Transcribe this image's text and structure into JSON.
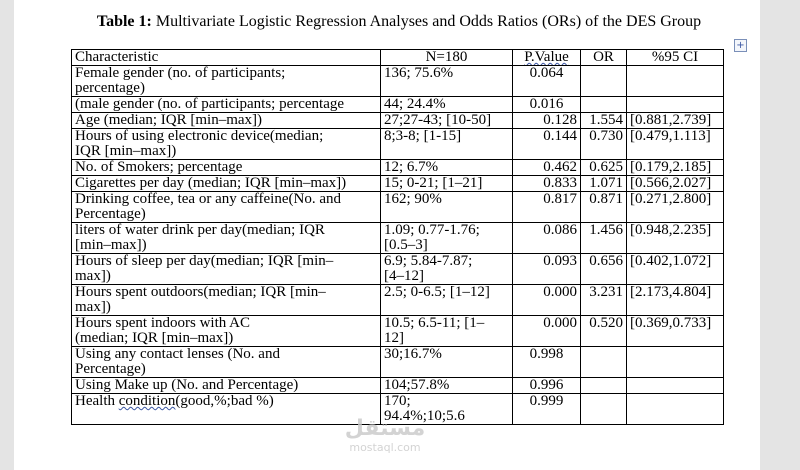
{
  "caption": {
    "label": "Table 1:",
    "text": " Multivariate Logistic Regression Analyses and Odds Ratios (ORs) of the DES Group"
  },
  "table": {
    "headers": [
      "Characteristic",
      "N=180",
      "P.Value",
      "OR",
      "%95 CI"
    ],
    "rows": [
      {
        "characteristic": [
          "Female gender (no. of participants;",
          "percentage)"
        ],
        "n": [
          "136; 75.6%"
        ],
        "p": "0.064",
        "or": "",
        "ci": ""
      },
      {
        "characteristic": [
          "(male gender (no. of participants; percentage"
        ],
        "n": [
          "44; 24.4%"
        ],
        "p": "0.016",
        "or": "",
        "ci": ""
      },
      {
        "characteristic": [
          "Age (median; IQR [min–max])"
        ],
        "n": [
          "27;27-43; [10-50]"
        ],
        "p": "0.128",
        "or": "1.554",
        "ci": "[0.881,2.739]"
      },
      {
        "characteristic": [
          " Hours of using electronic device(median;",
          "IQR [min–max])"
        ],
        "n": [
          "8;3-8; [1-15]"
        ],
        "p": "0.144",
        "or": "0.730",
        "ci": "[0.479,1.113]"
      },
      {
        "characteristic": [
          "No. of Smokers; percentage"
        ],
        "n": [
          "12; 6.7%"
        ],
        "p": "0.462",
        "or": "0.625",
        "ci": "[0.179,2.185]"
      },
      {
        "characteristic": [
          "Cigarettes per day (median; IQR [min–max])"
        ],
        "n": [
          "15; 0-21; [1–21]"
        ],
        "p": "0.833",
        "or": "1.071",
        "ci": "[0.566,2.027]"
      },
      {
        "characteristic": [
          "Drinking coffee, tea or any caffeine(No. and",
          "Percentage)"
        ],
        "n": [
          "162; 90%"
        ],
        "p": "0.817",
        "or": "0.871",
        "ci": "[0.271,2.800]"
      },
      {
        "characteristic": [
          "liters of water drink per day(median; IQR",
          "[min–max])"
        ],
        "n": [
          "1.09; 0.77-1.76;",
          "[0.5–3]"
        ],
        "p": "0.086",
        "or": "1.456",
        "ci": "[0.948,2.235]"
      },
      {
        "characteristic": [
          "Hours of sleep per day(median; IQR [min–",
          "max])"
        ],
        "n": [
          "6.9; 5.84-7.87;",
          "[4–12]"
        ],
        "p": "0.093",
        "or": "0.656",
        "ci": "[0.402,1.072]"
      },
      {
        "characteristic": [
          "Hours spent outdoors(median; IQR [min–",
          "max])"
        ],
        "n": [
          "2.5; 0-6.5; [1–12]"
        ],
        "p": "0.000",
        "or": "3.231",
        "ci": "[2.173,4.804]"
      },
      {
        "characteristic": [
          "Hours spent indoors with AC",
          "(median; IQR [min–max])"
        ],
        "n": [
          "10.5; 6.5-11; [1–",
          "12]"
        ],
        "p": "0.000",
        "or": "0.520",
        "ci": "[0.369,0.733]"
      },
      {
        "characteristic": [
          "Using any contact lenses (No. and",
          "Percentage)"
        ],
        "n": [
          "30;16.7%"
        ],
        "p": "0.998",
        "or": "",
        "ci": ""
      },
      {
        "characteristic": [
          "Using Make up (No. and Percentage)"
        ],
        "n": [
          "104;57.8%"
        ],
        "p": "0.996",
        "or": "",
        "ci": ""
      },
      {
        "characteristic": [
          "Health condition(good,%;bad %)"
        ],
        "n": [
          "170;",
          "94.4%;10;5.6"
        ],
        "p": "0.999",
        "or": "",
        "ci": ""
      }
    ]
  },
  "watermark": {
    "line1": "مستقل",
    "line2": "mostaql.com"
  }
}
